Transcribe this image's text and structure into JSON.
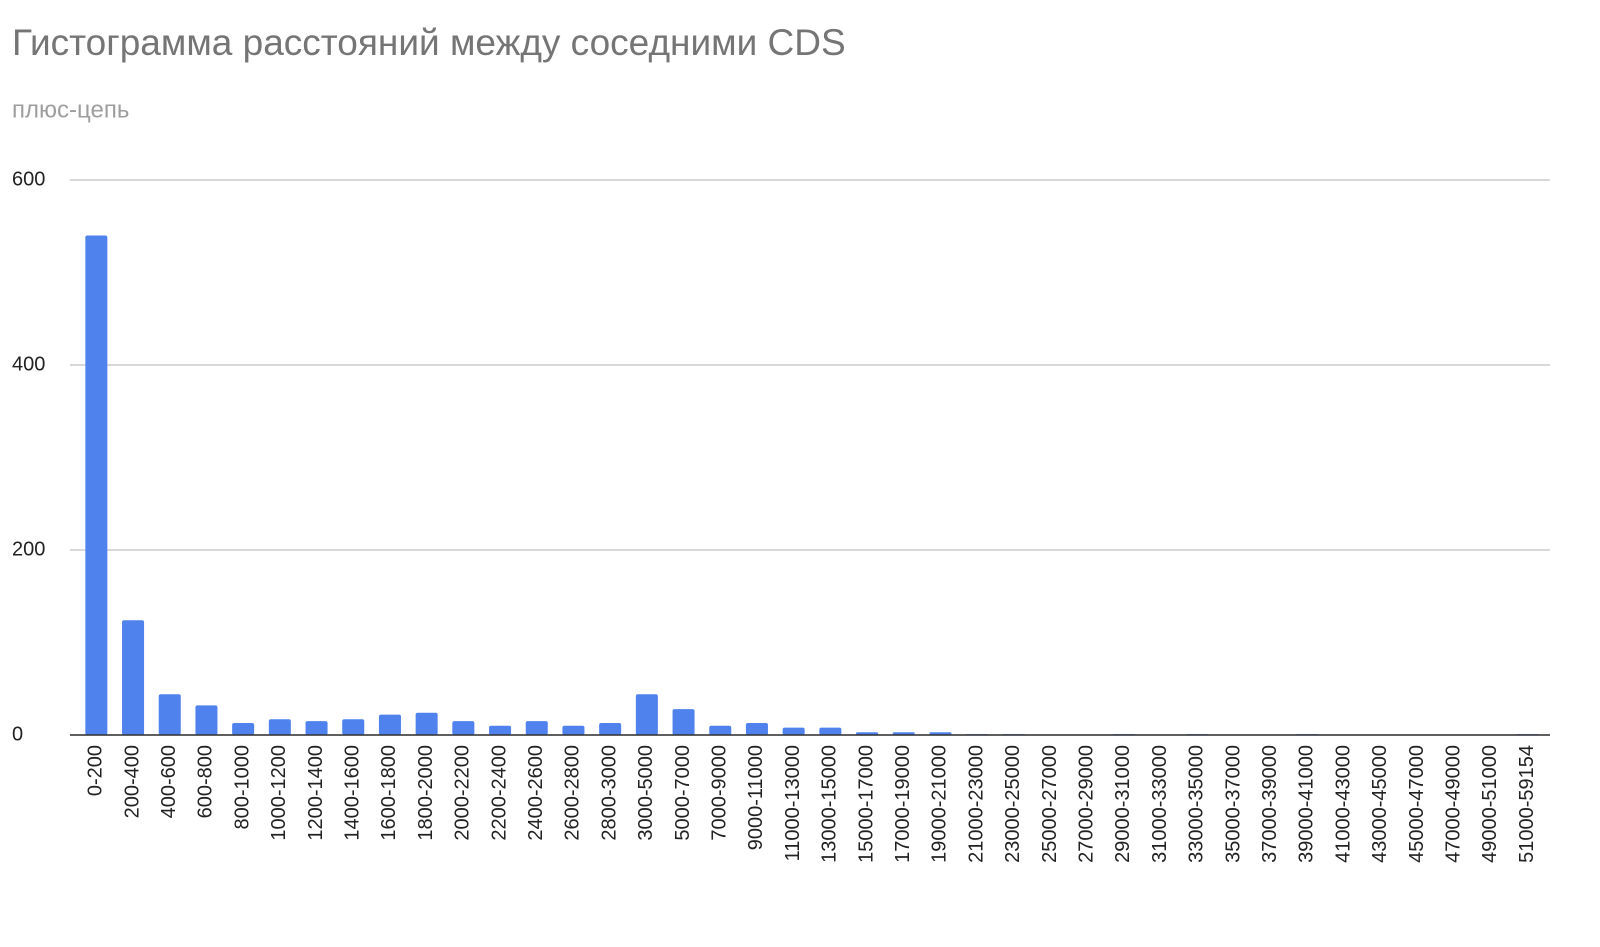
{
  "chart_data": {
    "type": "bar",
    "title": "Гистограмма расстояний между соседними CDS",
    "subtitle": "плюс-цепь",
    "categories": [
      "0-200",
      "200-400",
      "400-600",
      "600-800",
      "800-1000",
      "1000-1200",
      "1200-1400",
      "1400-1600",
      "1600-1800",
      "1800-2000",
      "2000-2200",
      "2200-2400",
      "2400-2600",
      "2600-2800",
      "2800-3000",
      "3000-5000",
      "5000-7000",
      "7000-9000",
      "9000-11000",
      "11000-13000",
      "13000-15000",
      "15000-17000",
      "17000-19000",
      "19000-21000",
      "21000-23000",
      "23000-25000",
      "25000-27000",
      "27000-29000",
      "29000-31000",
      "31000-33000",
      "33000-35000",
      "35000-37000",
      "37000-39000",
      "39000-41000",
      "41000-43000",
      "43000-45000",
      "45000-47000",
      "47000-49000",
      "49000-51000",
      "51000-59154"
    ],
    "values": [
      540,
      124,
      44,
      32,
      13,
      17,
      15,
      17,
      22,
      24,
      15,
      10,
      15,
      10,
      13,
      44,
      28,
      10,
      13,
      8,
      8,
      3,
      3,
      3,
      1,
      1,
      0,
      0,
      1,
      0,
      1,
      0,
      0,
      1,
      0,
      0,
      0,
      0,
      0,
      1
    ],
    "color": "#4f82ec",
    "ylim": [
      0,
      600
    ],
    "yticks": [
      0,
      200,
      400,
      600
    ],
    "grid": true
  }
}
